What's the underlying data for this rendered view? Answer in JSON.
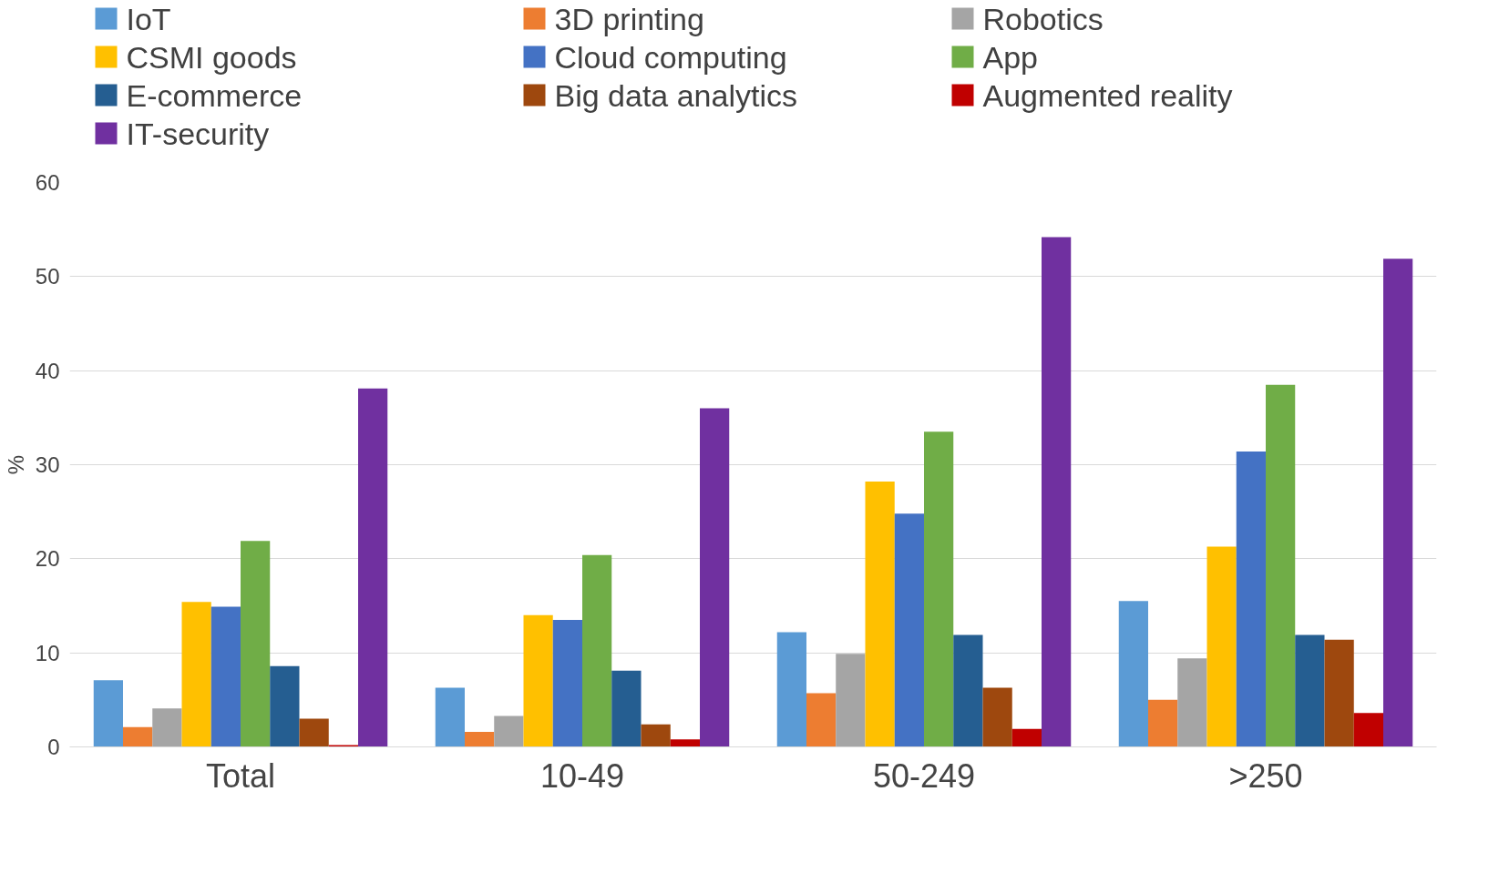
{
  "chart_data": {
    "type": "bar",
    "ylabel": "%",
    "categories": [
      "Total",
      "10-49",
      "50-249",
      ">250"
    ],
    "series": [
      {
        "name": "IoT",
        "color": "#5b9bd5",
        "values": [
          7.1,
          6.3,
          12.2,
          15.5
        ]
      },
      {
        "name": "3D printing",
        "color": "#ed7d31",
        "values": [
          2.1,
          1.6,
          5.7,
          5.0
        ]
      },
      {
        "name": "Robotics",
        "color": "#a5a5a5",
        "values": [
          4.1,
          3.3,
          9.9,
          9.4
        ]
      },
      {
        "name": "CSMI goods",
        "color": "#ffc000",
        "values": [
          15.4,
          14.0,
          28.2,
          21.3
        ]
      },
      {
        "name": "Cloud computing",
        "color": "#4472c4",
        "values": [
          14.9,
          13.5,
          24.8,
          31.4
        ]
      },
      {
        "name": "App",
        "color": "#70ad47",
        "values": [
          21.9,
          20.4,
          33.5,
          38.5
        ]
      },
      {
        "name": "E-commerce",
        "color": "#255e91",
        "values": [
          8.6,
          8.1,
          11.9,
          11.9
        ]
      },
      {
        "name": "Big data analytics",
        "color": "#9e480e",
        "values": [
          3.0,
          2.4,
          6.3,
          11.4
        ]
      },
      {
        "name": "Augmented reality",
        "color": "#c00000",
        "values": [
          0.2,
          0.8,
          1.9,
          3.6
        ]
      },
      {
        "name": "IT-security",
        "color": "#7030a0",
        "values": [
          38.1,
          36.0,
          54.2,
          51.9
        ]
      }
    ],
    "ylim": [
      0,
      60
    ],
    "yticks": [
      0,
      10,
      20,
      30,
      40,
      50,
      60
    ],
    "grid": "y",
    "legend": "top"
  }
}
